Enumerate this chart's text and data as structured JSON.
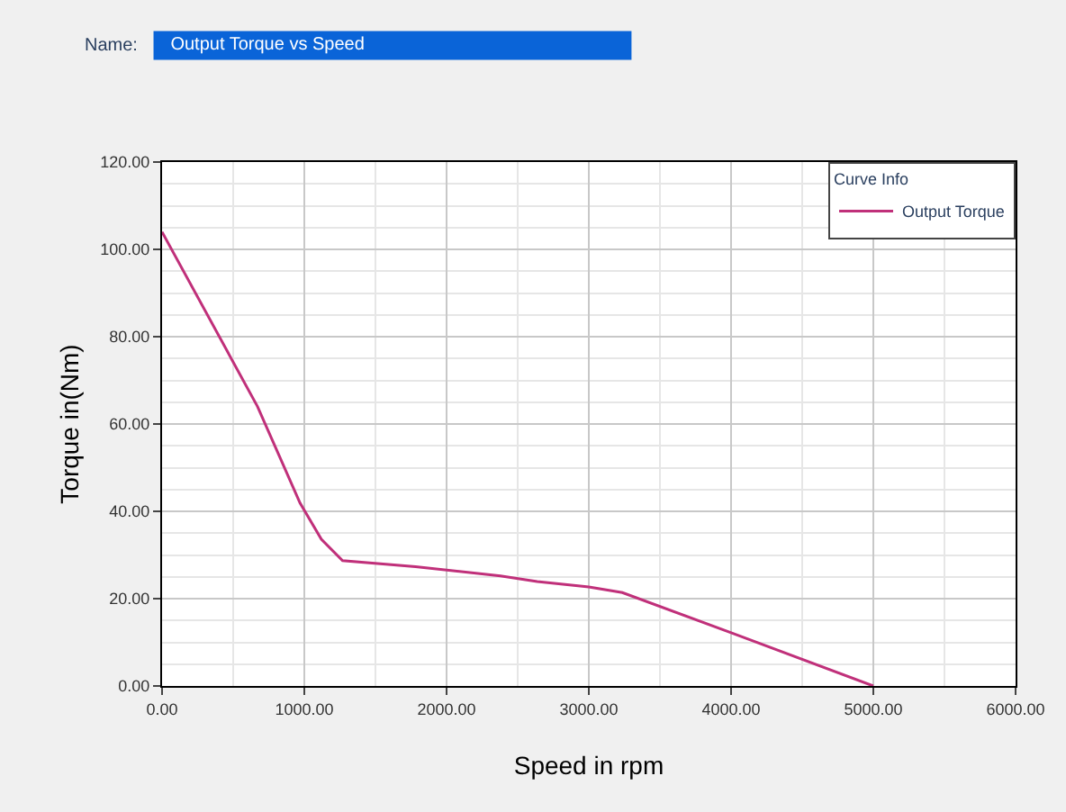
{
  "chart_data": {
    "type": "line",
    "title": "Output Torque vs Speed",
    "annotations": [
      "Name:"
    ],
    "xlabel": "Speed in rpm",
    "ylabel": "Torque in(Nm)",
    "legend_title": "Curve Info",
    "x": [
      0,
      671,
      970,
      1120,
      1269,
      1782,
      2379,
      2637,
      3000,
      3236,
      4009,
      5000
    ],
    "series": [
      {
        "name": "Output Torque",
        "color": "#c0307a",
        "values": [
          104,
          64,
          41.9,
          33.6,
          28.7,
          27.3,
          25.2,
          23.9,
          22.7,
          21.4,
          12.1,
          0
        ]
      }
    ],
    "xlim": [
      0,
      6000
    ],
    "xticks": [
      {
        "value": 0,
        "label": "0.00"
      },
      {
        "value": 1000,
        "label": "1000.00"
      },
      {
        "value": 2000,
        "label": "2000.00"
      },
      {
        "value": 3000,
        "label": "3000.00"
      },
      {
        "value": 4000,
        "label": "4000.00"
      },
      {
        "value": 5000,
        "label": "5000.00"
      },
      {
        "value": 6000,
        "label": "6000.00"
      }
    ],
    "ylim": [
      0,
      120
    ],
    "yticks": [
      {
        "value": 0,
        "label": "0.00"
      },
      {
        "value": 20,
        "label": "20.00"
      },
      {
        "value": 40,
        "label": "40.00"
      },
      {
        "value": 60,
        "label": "60.00"
      },
      {
        "value": 80,
        "label": "80.00"
      },
      {
        "value": 100,
        "label": "100.00"
      },
      {
        "value": 120,
        "label": "120.00"
      }
    ],
    "grid": true,
    "legend": "top right",
    "marker": "none",
    "line_style": "solid"
  }
}
